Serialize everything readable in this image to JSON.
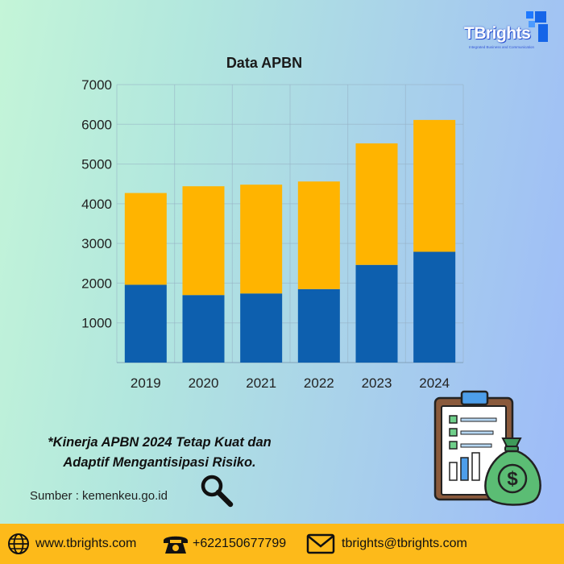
{
  "logo": {
    "name": "TBrights",
    "tagline": "Integrated Business and Communication"
  },
  "chart_data": {
    "type": "bar",
    "stacked": true,
    "title": "Data APBN",
    "categories": [
      "2019",
      "2020",
      "2021",
      "2022",
      "2023",
      "2024"
    ],
    "series": [
      {
        "color": "#0d5fae",
        "values": [
          1960,
          1700,
          1740,
          1850,
          2460,
          2790
        ]
      },
      {
        "color": "#ffb400",
        "values": [
          2310,
          2740,
          2740,
          2710,
          3060,
          3320
        ]
      }
    ],
    "ylim": [
      0,
      7000
    ],
    "yticks": [
      1000,
      2000,
      3000,
      4000,
      5000,
      6000,
      7000
    ],
    "ytick_labels": [
      "1000",
      "2000",
      "3000",
      "4000",
      "5000",
      "6000",
      "7000"
    ],
    "grid": true,
    "xlabel": "",
    "ylabel": ""
  },
  "note": {
    "line1": "*Kinerja APBN 2024 Tetap Kuat dan",
    "line2": "Adaptif Mengantisipasi Risiko."
  },
  "source": "Sumber : kemenkeu.go.id",
  "icons": {
    "magnifier": "magnifier-icon",
    "illustration": "clipboard-chart-money-bag-icon",
    "web": "globe-icon",
    "phone": "telephone-icon",
    "email": "envelope-icon"
  },
  "footer": {
    "website": "www.tbrights.com",
    "phone": "+622150677799",
    "email": "tbrights@tbrights.com"
  },
  "colors": {
    "footer_bg": "#fdba1a",
    "bar_dark": "#0d5fae",
    "bar_light": "#ffb400"
  }
}
